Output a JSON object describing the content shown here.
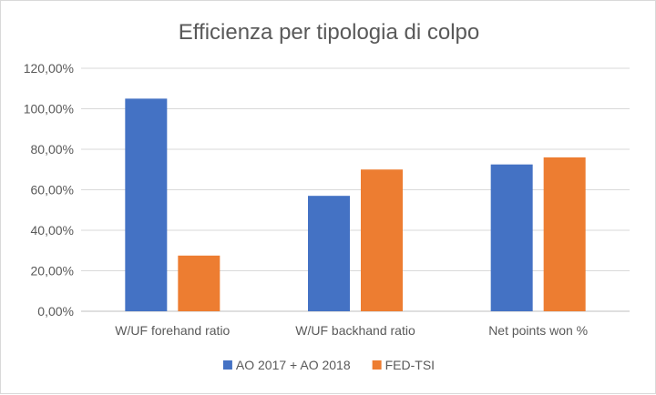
{
  "chart_data": {
    "type": "bar",
    "title": "Efficienza per tipologia di colpo",
    "categories": [
      "W/UF forehand ratio",
      "W/UF backhand ratio",
      "Net points won %"
    ],
    "series": [
      {
        "name": "AO 2017 + AO 2018",
        "values": [
          105,
          57,
          72.5
        ],
        "color": "#4472c4"
      },
      {
        "name": "FED-TSI",
        "values": [
          27.5,
          70,
          76
        ],
        "color": "#ed7d31"
      }
    ],
    "ylim": [
      0,
      120
    ],
    "yticks": [
      "0,00%",
      "20,00%",
      "40,00%",
      "60,00%",
      "80,00%",
      "100,00%",
      "120,00%"
    ],
    "ytick_values": [
      0,
      20,
      40,
      60,
      80,
      100,
      120
    ],
    "grid": true,
    "legend": "bottom"
  }
}
